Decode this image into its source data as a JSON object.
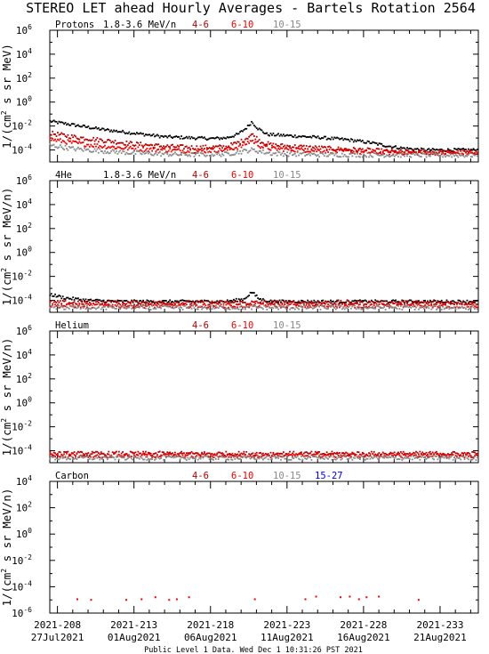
{
  "title": "STEREO LET ahead Hourly Averages - Bartels Rotation 2564",
  "footer": "Public Level 1 Data. Wed Dec  1 10:31:26 PST 2021",
  "colors": {
    "4-6": "#b30000",
    "6-10": "#ee0000",
    "10-15": "#888888",
    "15-27": "#0000dd",
    "1.8-3.6": "#000000",
    "axis": "#000000"
  },
  "x_axis": {
    "range_doy": [
      207.5,
      235.5
    ],
    "ticks": [
      {
        "doy": 208,
        "line1": "2021-208",
        "line2": "27Jul2021"
      },
      {
        "doy": 213,
        "line1": "2021-213",
        "line2": "01Aug2021"
      },
      {
        "doy": 218,
        "line1": "2021-218",
        "line2": "06Aug2021"
      },
      {
        "doy": 223,
        "line1": "2021-223",
        "line2": "11Aug2021"
      },
      {
        "doy": 228,
        "line1": "2021-228",
        "line2": "16Aug2021"
      },
      {
        "doy": 233,
        "line1": "2021-233",
        "line2": "21Aug2021"
      }
    ]
  },
  "chart_data": [
    {
      "type": "scatter",
      "panel": "Protons",
      "name": "Protons",
      "primary_channel": "1.8-3.6 MeV/n",
      "legend": [
        "4-6",
        "6-10",
        "10-15"
      ],
      "ylabel_parts": [
        "1/(cm",
        "2",
        " s sr MeV)"
      ],
      "y_scale": "log",
      "ylim_exp": [
        -5,
        6
      ],
      "yticks": [
        {
          "base": "10",
          "exp": "6",
          "v": 6
        },
        {
          "base": "10",
          "exp": "4",
          "v": 4
        },
        {
          "base": "10",
          "exp": "2",
          "v": 2
        },
        {
          "base": "10",
          "exp": "0",
          "v": 0
        },
        {
          "base": "10",
          "exp": "-2",
          "v": -2
        },
        {
          "base": "10",
          "exp": "-4",
          "v": -4
        }
      ],
      "series": [
        {
          "channel": "1.8-3.6",
          "log10_flux": [
            [
              207.5,
              -1.6
            ],
            [
              209.0,
              -1.9
            ],
            [
              211.0,
              -2.3
            ],
            [
              213.0,
              -2.6
            ],
            [
              215.0,
              -2.9
            ],
            [
              217.0,
              -3.0
            ],
            [
              218.0,
              -3.05
            ],
            [
              219.0,
              -3.0
            ],
            [
              219.8,
              -2.7
            ],
            [
              220.4,
              -2.1
            ],
            [
              220.7,
              -1.65
            ],
            [
              221.1,
              -2.2
            ],
            [
              221.7,
              -2.7
            ],
            [
              223.0,
              -2.8
            ],
            [
              225.0,
              -2.95
            ],
            [
              227.0,
              -3.15
            ],
            [
              228.5,
              -3.4
            ],
            [
              229.5,
              -3.65
            ],
            [
              230.5,
              -3.85
            ],
            [
              232.0,
              -4.0
            ],
            [
              235.5,
              -4.0
            ]
          ]
        },
        {
          "channel": "4-6",
          "log10_flux": [
            [
              207.5,
              -2.6
            ],
            [
              209.0,
              -2.9
            ],
            [
              211.0,
              -3.2
            ],
            [
              213.0,
              -3.5
            ],
            [
              215.0,
              -3.7
            ],
            [
              217.0,
              -3.8
            ],
            [
              219.0,
              -3.75
            ],
            [
              220.0,
              -3.3
            ],
            [
              220.7,
              -2.7
            ],
            [
              221.3,
              -3.3
            ],
            [
              222.0,
              -3.6
            ],
            [
              224.0,
              -3.75
            ],
            [
              226.0,
              -3.9
            ],
            [
              228.0,
              -4.0
            ],
            [
              230.0,
              -4.15
            ],
            [
              232.0,
              -4.2
            ],
            [
              235.5,
              -4.2
            ]
          ]
        },
        {
          "channel": "6-10",
          "log10_flux": [
            [
              207.5,
              -3.1
            ],
            [
              209.0,
              -3.4
            ],
            [
              211.0,
              -3.7
            ],
            [
              213.0,
              -3.9
            ],
            [
              215.0,
              -4.0
            ],
            [
              217.0,
              -4.1
            ],
            [
              219.0,
              -4.0
            ],
            [
              220.0,
              -3.7
            ],
            [
              220.7,
              -3.2
            ],
            [
              221.3,
              -3.7
            ],
            [
              222.0,
              -3.9
            ],
            [
              224.0,
              -4.0
            ],
            [
              226.0,
              -4.1
            ],
            [
              228.0,
              -4.2
            ],
            [
              232.0,
              -4.25
            ],
            [
              235.5,
              -4.25
            ]
          ]
        },
        {
          "channel": "10-15",
          "log10_flux": [
            [
              207.5,
              -3.6
            ],
            [
              209.0,
              -3.9
            ],
            [
              211.0,
              -4.1
            ],
            [
              213.0,
              -4.25
            ],
            [
              215.0,
              -4.35
            ],
            [
              217.0,
              -4.4
            ],
            [
              219.0,
              -4.35
            ],
            [
              220.7,
              -4.0
            ],
            [
              222.0,
              -4.3
            ],
            [
              225.0,
              -4.4
            ],
            [
              235.5,
              -4.45
            ]
          ]
        }
      ]
    },
    {
      "type": "scatter",
      "panel": "4He",
      "name": "4He",
      "primary_channel": "1.8-3.6 MeV/n",
      "legend": [
        "4-6",
        "6-10",
        "10-15"
      ],
      "ylabel_parts": [
        "1/(cm",
        "2",
        " s sr MeV/n)"
      ],
      "y_scale": "log",
      "ylim_exp": [
        -5,
        6
      ],
      "yticks": [
        {
          "base": "10",
          "exp": "6",
          "v": 6
        },
        {
          "base": "10",
          "exp": "4",
          "v": 4
        },
        {
          "base": "10",
          "exp": "2",
          "v": 2
        },
        {
          "base": "10",
          "exp": "0",
          "v": 0
        },
        {
          "base": "10",
          "exp": "-2",
          "v": -2
        },
        {
          "base": "10",
          "exp": "-4",
          "v": -4
        }
      ],
      "series": [
        {
          "channel": "1.8-3.6",
          "log10_flux": [
            [
              207.5,
              -3.5
            ],
            [
              208.5,
              -3.8
            ],
            [
              210.0,
              -4.0
            ],
            [
              212.0,
              -4.1
            ],
            [
              219.0,
              -4.1
            ],
            [
              220.2,
              -3.9
            ],
            [
              220.7,
              -3.3
            ],
            [
              221.2,
              -3.9
            ],
            [
              222.0,
              -4.1
            ],
            [
              235.5,
              -4.1
            ]
          ]
        },
        {
          "channel": "4-6",
          "log10_flux": [
            [
              207.5,
              -4.2
            ],
            [
              235.5,
              -4.2
            ]
          ]
        },
        {
          "channel": "6-10",
          "log10_flux": [
            [
              207.5,
              -4.45
            ],
            [
              235.5,
              -4.45
            ]
          ]
        },
        {
          "channel": "10-15",
          "log10_flux": [
            [
              207.5,
              -4.6
            ],
            [
              235.5,
              -4.6
            ]
          ]
        }
      ]
    },
    {
      "type": "scatter",
      "panel": "Helium",
      "name": "Helium",
      "primary_channel": "",
      "legend": [
        "4-6",
        "6-10",
        "10-15"
      ],
      "ylabel_parts": [
        "1/(cm",
        "2",
        " s sr MeV/n)"
      ],
      "y_scale": "log",
      "ylim_exp": [
        -5,
        6
      ],
      "yticks": [
        {
          "base": "10",
          "exp": "6",
          "v": 6
        },
        {
          "base": "10",
          "exp": "4",
          "v": 4
        },
        {
          "base": "10",
          "exp": "2",
          "v": 2
        },
        {
          "base": "10",
          "exp": "0",
          "v": 0
        },
        {
          "base": "10",
          "exp": "-2",
          "v": -2
        },
        {
          "base": "10",
          "exp": "-4",
          "v": -4
        }
      ],
      "series": [
        {
          "channel": "4-6",
          "log10_flux": [
            [
              207.5,
              -4.25
            ],
            [
              235.5,
              -4.25
            ]
          ]
        },
        {
          "channel": "6-10",
          "log10_flux": [
            [
              207.5,
              -4.4
            ],
            [
              235.5,
              -4.4
            ]
          ]
        },
        {
          "channel": "10-15",
          "log10_flux": [
            [
              207.5,
              -4.6
            ],
            [
              235.5,
              -4.6
            ]
          ]
        }
      ]
    },
    {
      "type": "scatter",
      "panel": "Carbon",
      "name": "Carbon",
      "primary_channel": "",
      "legend": [
        "4-6",
        "6-10",
        "10-15",
        "15-27"
      ],
      "ylabel_parts": [
        "1/(cm",
        "2",
        " s sr MeV/n)"
      ],
      "y_scale": "log",
      "ylim_exp": [
        -6,
        4
      ],
      "yticks": [
        {
          "base": "10",
          "exp": "4",
          "v": 4
        },
        {
          "base": "10",
          "exp": "2",
          "v": 2
        },
        {
          "base": "10",
          "exp": "0",
          "v": 0
        },
        {
          "base": "10",
          "exp": "-2",
          "v": -2
        },
        {
          "base": "10",
          "exp": "-4",
          "v": -4
        },
        {
          "base": "10",
          "exp": "-6",
          "v": -6
        }
      ],
      "series": [
        {
          "channel": "6-10",
          "points": [
            [
              209.3,
              -4.95
            ],
            [
              210.2,
              -5.0
            ],
            [
              212.5,
              -5.0
            ],
            [
              213.5,
              -4.95
            ],
            [
              214.4,
              -4.8
            ],
            [
              215.3,
              -5.0
            ],
            [
              215.8,
              -4.95
            ],
            [
              216.6,
              -4.8
            ],
            [
              220.9,
              -4.95
            ],
            [
              224.2,
              -4.95
            ],
            [
              224.9,
              -4.75
            ],
            [
              226.5,
              -4.8
            ],
            [
              227.1,
              -4.75
            ],
            [
              227.7,
              -4.95
            ],
            [
              228.2,
              -4.8
            ],
            [
              229.0,
              -4.75
            ],
            [
              231.6,
              -5.0
            ]
          ]
        }
      ]
    }
  ]
}
